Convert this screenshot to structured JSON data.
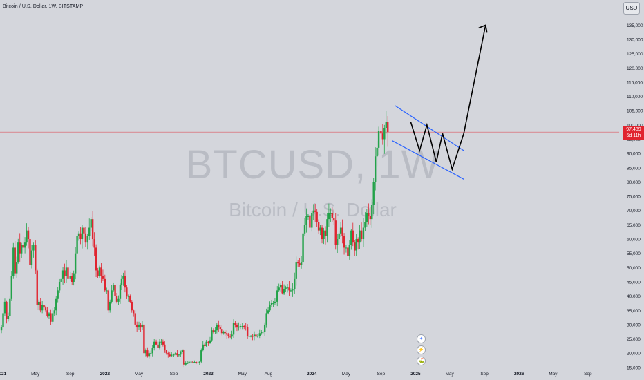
{
  "header": {
    "symbol_title": "Bitcoin / U.S. Dollar, 1W, BITSTAMP",
    "currency_button": "USD"
  },
  "watermark": {
    "ticker": "BTCUSD, 1W",
    "name": "Bitcoin / U.S. Dollar"
  },
  "price_label": {
    "price": "97,489",
    "countdown": "5d 11h"
  },
  "event_icons": [
    "+",
    "⚡",
    "⛳"
  ],
  "colors": {
    "background": "#d4d6dc",
    "up_candle": "#22a249",
    "down_candle": "#e0242f",
    "channel_line": "#2962ff",
    "projection": "#000000",
    "price_line": "#e0242f"
  },
  "chart_data": {
    "type": "candlestick",
    "series_name": "BTCUSD",
    "interval": "1W",
    "yscale": "linear",
    "ylim": [
      14000,
      137500
    ],
    "y_ticks": [
      15000,
      20000,
      25000,
      30000,
      35000,
      40000,
      45000,
      50000,
      55000,
      60000,
      65000,
      70000,
      75000,
      80000,
      85000,
      90000,
      95000,
      100000,
      105000,
      110000,
      115000,
      120000,
      125000,
      130000,
      135000
    ],
    "y_tick_labels": [
      "15,000",
      "20,000",
      "25,000",
      "30,000",
      "35,000",
      "40,000",
      "45,000",
      "50,000",
      "55,000",
      "60,000",
      "65,000",
      "70,000",
      "75,000",
      "80,000",
      "85,000",
      "90,000",
      "95,000",
      "100,000",
      "105,000",
      "110,000",
      "115,000",
      "120,000",
      "125,000",
      "130,000",
      "135,000"
    ],
    "x_tick_labels": [
      "2021",
      "May",
      "Sep",
      "2022",
      "May",
      "Sep",
      "2023",
      "May",
      "Aug",
      "2024",
      "May",
      "Sep",
      "2025",
      "May",
      "Sep",
      "2026",
      "May",
      "Sep"
    ],
    "x_tick_dates": [
      "2021-01-01",
      "2021-05-01",
      "2021-09-01",
      "2022-01-01",
      "2022-05-01",
      "2022-09-01",
      "2023-01-01",
      "2023-05-01",
      "2023-08-01",
      "2024-01-01",
      "2024-05-01",
      "2024-09-01",
      "2025-01-01",
      "2025-05-01",
      "2025-09-01",
      "2026-01-01",
      "2026-05-01",
      "2026-09-01"
    ],
    "x_end_date": "2026-12-20",
    "bold_ticks": [
      "2021",
      "2022",
      "2023",
      "2024",
      "2025",
      "2026"
    ],
    "last_price": 97489,
    "weekly_closes": [
      {
        "date": "2021-01",
        "closes": [
          29000,
          34000,
          38000,
          32000,
          33000,
          39000,
          47000,
          57000,
          48000,
          52000
        ]
      },
      {
        "date": "2021-03",
        "closes": [
          59000,
          55000,
          58000,
          57000,
          59000,
          63000,
          60000,
          51000,
          56000,
          58000
        ]
      },
      {
        "date": "2021-05",
        "closes": [
          49000,
          37000,
          38000,
          35000,
          37000,
          36000,
          35000,
          33000,
          34000,
          31000
        ]
      },
      {
        "date": "2021-07",
        "closes": [
          34000,
          35000,
          39000,
          42000,
          45000,
          46000,
          49000,
          47000,
          50000,
          46000
        ]
      },
      {
        "date": "2021-09",
        "closes": [
          47000,
          45000,
          48000,
          55000,
          61000,
          62000,
          60000,
          64000,
          62000,
          59000
        ]
      },
      {
        "date": "2021-11",
        "closes": [
          61000,
          64000,
          67000,
          60000,
          57000,
          49000,
          47000,
          50000,
          47000,
          46000
        ]
      },
      {
        "date": "2022-01",
        "closes": [
          42000,
          42000,
          35000,
          38000,
          42000,
          44000,
          40000,
          38000,
          39000,
          44000
        ]
      },
      {
        "date": "2022-03",
        "closes": [
          46000,
          47000,
          43000,
          40000,
          40000,
          38000,
          35000,
          34000,
          30000,
          29000
        ]
      },
      {
        "date": "2022-05",
        "closes": [
          30000,
          29000,
          30000,
          20000,
          21000,
          19000,
          20000,
          20000,
          22000,
          24000
        ]
      },
      {
        "date": "2022-07",
        "closes": [
          23000,
          22000,
          24000,
          24000,
          23000,
          21000,
          20000,
          19500,
          19000,
          19500
        ]
      },
      {
        "date": "2022-09",
        "closes": [
          19500,
          20000,
          19300,
          19500,
          20500,
          21000,
          16000,
          16500,
          16500,
          17000
        ]
      },
      {
        "date": "2022-11",
        "closes": [
          17000,
          16800,
          16900,
          16700,
          16500,
          17000,
          21000,
          23000,
          22500,
          24000
        ]
      },
      {
        "date": "2023-01",
        "closes": [
          23500,
          24500,
          28000,
          27500,
          28000,
          30000,
          29000,
          28500,
          27000,
          27500
        ]
      },
      {
        "date": "2023-03",
        "closes": [
          27000,
          26500,
          26000,
          25800,
          26500,
          30500,
          30000,
          29000,
          29200,
          29500
        ]
      },
      {
        "date": "2023-05",
        "closes": [
          29500,
          29300,
          29200,
          26000,
          26000,
          26000,
          25900,
          26500,
          25800,
          26000
        ]
      },
      {
        "date": "2023-07",
        "closes": [
          27000,
          27500,
          27500,
          30000,
          34000,
          35000,
          37000,
          37500,
          37500,
          38000
        ]
      },
      {
        "date": "2023-09",
        "closes": [
          42000,
          43000,
          44000,
          41000,
          42500,
          43000,
          43000,
          42000,
          42000,
          42500
        ]
      },
      {
        "date": "2023-11",
        "closes": [
          46000,
          52000,
          51500,
          51000,
          52000,
          62000,
          65000,
          68000,
          68000,
          64000
        ]
      },
      {
        "date": "2024-01",
        "closes": [
          69000,
          70000,
          69500,
          66000,
          63000,
          64000,
          60000,
          63000,
          61000,
          67000
        ]
      },
      {
        "date": "2024-03",
        "closes": [
          69000,
          69000,
          67500,
          66500,
          58000,
          60000,
          62000,
          64000,
          61000,
          57000
        ]
      },
      {
        "date": "2024-05",
        "closes": [
          57000,
          54000,
          58000,
          63000,
          59000,
          56000,
          60000,
          59000,
          63000,
          60000
        ]
      },
      {
        "date": "2024-07",
        "closes": [
          64000,
          66000,
          69000,
          68000,
          67000,
          72000,
          80000,
          89000,
          92000,
          98000
        ]
      },
      {
        "date": "2024-09",
        "closes": [
          97000,
          95000,
          99000,
          101000,
          97489
        ]
      }
    ]
  }
}
